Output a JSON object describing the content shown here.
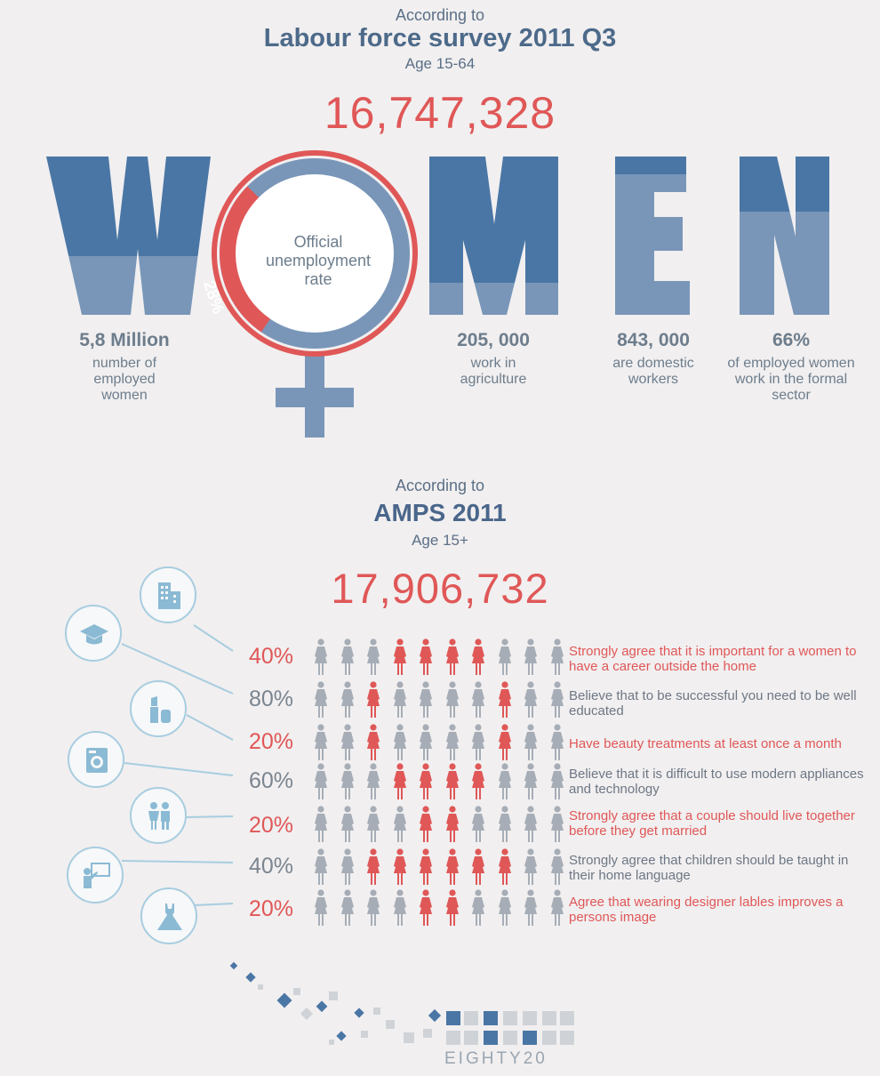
{
  "section1": {
    "intro": "According to",
    "title": "Labour force survey 2011 Q3",
    "age": "Age 15-64",
    "total": "16,747,328",
    "word_letters": [
      "W",
      "M",
      "E",
      "N"
    ],
    "circle_label": "Official unemployment rate",
    "unemployment_rate": "28%",
    "unemployment_fraction": 0.28,
    "stats": [
      {
        "value": "5,8 Million",
        "desc": "number of employed women"
      },
      {
        "value": "205, 000",
        "desc": "work in agriculture"
      },
      {
        "value": "843, 000",
        "desc": "are domestic workers"
      },
      {
        "value": "66%",
        "desc": "of employed women work in the formal sector"
      }
    ]
  },
  "section2": {
    "intro": "According to",
    "title": "AMPS 2011",
    "age": "Age 15+",
    "total": "17,906,732",
    "rows": [
      {
        "pct": "40%",
        "color": "red",
        "icon": "building-icon",
        "statement": "Strongly agree that it is important for a women to have a career outside the home",
        "highlight": [
          3,
          4,
          5,
          6
        ]
      },
      {
        "pct": "80%",
        "color": "gray",
        "icon": "graduation-cap-icon",
        "statement": "Believe that to be successful you need to be well educated",
        "highlight": [
          2,
          7
        ]
      },
      {
        "pct": "20%",
        "color": "red",
        "icon": "lipstick-icon",
        "statement": "Have beauty treatments at least once a month",
        "highlight": [
          2,
          7
        ]
      },
      {
        "pct": "60%",
        "color": "gray",
        "icon": "washing-machine-icon",
        "statement": "Believe that it is difficult to use modern appliances and technology",
        "highlight": [
          3,
          4,
          5,
          6
        ]
      },
      {
        "pct": "20%",
        "color": "red",
        "icon": "couple-icon",
        "statement": "Strongly agree that a couple should live together before they get married",
        "highlight": [
          4,
          5
        ]
      },
      {
        "pct": "40%",
        "color": "gray",
        "icon": "teacher-icon",
        "statement": "Strongly agree that children should be taught in their home language",
        "highlight": [
          2,
          3,
          4,
          5,
          6,
          7
        ]
      },
      {
        "pct": "20%",
        "color": "red",
        "icon": "dress-icon",
        "statement": "Agree that wearing designer lables improves a persons image",
        "highlight": [
          4,
          5
        ]
      }
    ]
  },
  "footer": {
    "logo_text": "EIGHTY20"
  },
  "colors": {
    "red": "#e05757",
    "dark_blue": "#4a76a5",
    "light_blue": "#7996b8",
    "gray_person": "#a6adb6"
  }
}
